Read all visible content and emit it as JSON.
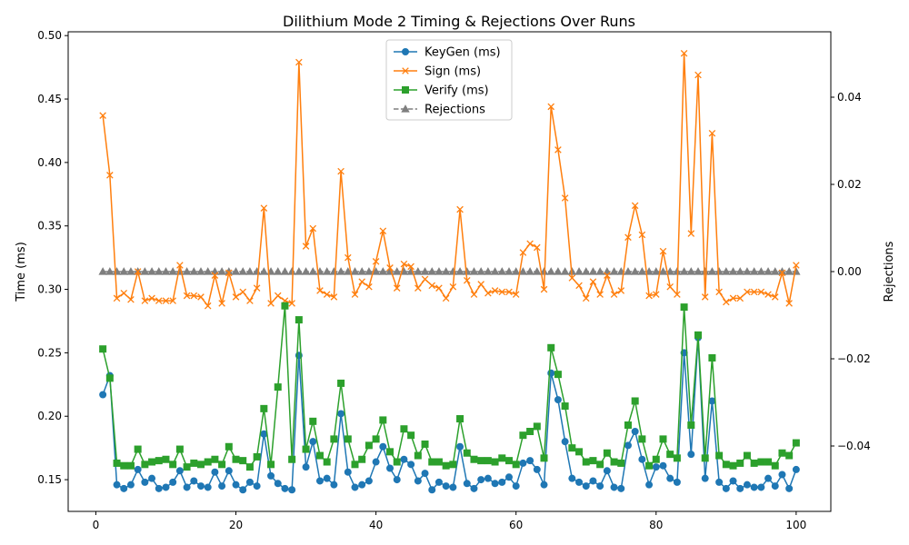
{
  "chart_data": {
    "type": "line",
    "title": "Dilithium Mode 2 Timing & Rejections Over Runs",
    "xlabel": "",
    "ylabel": "Time (ms)",
    "y2label": "Rejections",
    "xlim": [
      -3.95,
      104.95
    ],
    "ylim": [
      0.125,
      0.503
    ],
    "y2lim": [
      -0.055,
      0.055
    ],
    "x_ticks": [
      0,
      20,
      40,
      60,
      80,
      100
    ],
    "y_ticks": [
      0.15,
      0.2,
      0.25,
      0.3,
      0.35,
      0.4,
      0.45,
      0.5
    ],
    "y2_ticks": [
      -0.04,
      -0.02,
      0.0,
      0.02,
      0.04
    ],
    "legend_position": "top-center",
    "grid": false,
    "x": [
      1,
      2,
      3,
      4,
      5,
      6,
      7,
      8,
      9,
      10,
      11,
      12,
      13,
      14,
      15,
      16,
      17,
      18,
      19,
      20,
      21,
      22,
      23,
      24,
      25,
      26,
      27,
      28,
      29,
      30,
      31,
      32,
      33,
      34,
      35,
      36,
      37,
      38,
      39,
      40,
      41,
      42,
      43,
      44,
      45,
      46,
      47,
      48,
      49,
      50,
      51,
      52,
      53,
      54,
      55,
      56,
      57,
      58,
      59,
      60,
      61,
      62,
      63,
      64,
      65,
      66,
      67,
      68,
      69,
      70,
      71,
      72,
      73,
      74,
      75,
      76,
      77,
      78,
      79,
      80,
      81,
      82,
      83,
      84,
      85,
      86,
      87,
      88,
      89,
      90,
      91,
      92,
      93,
      94,
      95,
      96,
      97,
      98,
      99,
      100
    ],
    "series": [
      {
        "name": "KeyGen (ms)",
        "axis": "left",
        "color": "#1f77b4",
        "marker": "circle",
        "values": [
          0.217,
          0.232,
          0.146,
          0.143,
          0.146,
          0.158,
          0.148,
          0.151,
          0.143,
          0.144,
          0.148,
          0.157,
          0.144,
          0.149,
          0.145,
          0.144,
          0.156,
          0.145,
          0.157,
          0.146,
          0.142,
          0.148,
          0.145,
          0.186,
          0.153,
          0.147,
          0.143,
          0.142,
          0.248,
          0.16,
          0.18,
          0.149,
          0.151,
          0.146,
          0.202,
          0.156,
          0.144,
          0.146,
          0.149,
          0.164,
          0.176,
          0.159,
          0.15,
          0.166,
          0.162,
          0.149,
          0.155,
          0.142,
          0.148,
          0.145,
          0.144,
          0.176,
          0.147,
          0.143,
          0.15,
          0.151,
          0.147,
          0.148,
          0.152,
          0.145,
          0.163,
          0.165,
          0.158,
          0.146,
          0.234,
          0.213,
          0.18,
          0.151,
          0.148,
          0.145,
          0.149,
          0.145,
          0.157,
          0.144,
          0.143,
          0.177,
          0.188,
          0.166,
          0.146,
          0.16,
          0.161,
          0.151,
          0.148,
          0.25,
          0.17,
          0.262,
          0.151,
          0.212,
          0.148,
          0.143,
          0.149,
          0.143,
          0.146,
          0.144,
          0.144,
          0.151,
          0.145,
          0.154,
          0.143,
          0.158
        ]
      },
      {
        "name": "Sign (ms)",
        "axis": "left",
        "color": "#ff7f0e",
        "marker": "x",
        "values": [
          0.437,
          0.39,
          0.293,
          0.297,
          0.292,
          0.314,
          0.291,
          0.293,
          0.291,
          0.291,
          0.291,
          0.319,
          0.295,
          0.295,
          0.294,
          0.287,
          0.311,
          0.289,
          0.313,
          0.294,
          0.298,
          0.291,
          0.301,
          0.364,
          0.289,
          0.295,
          0.291,
          0.289,
          0.479,
          0.334,
          0.348,
          0.299,
          0.296,
          0.294,
          0.393,
          0.325,
          0.296,
          0.306,
          0.302,
          0.322,
          0.346,
          0.317,
          0.301,
          0.32,
          0.318,
          0.301,
          0.308,
          0.303,
          0.301,
          0.293,
          0.302,
          0.363,
          0.307,
          0.296,
          0.304,
          0.297,
          0.299,
          0.298,
          0.298,
          0.296,
          0.329,
          0.336,
          0.333,
          0.3,
          0.444,
          0.41,
          0.372,
          0.309,
          0.303,
          0.293,
          0.306,
          0.296,
          0.311,
          0.296,
          0.299,
          0.341,
          0.366,
          0.343,
          0.295,
          0.296,
          0.33,
          0.302,
          0.296,
          0.486,
          0.344,
          0.469,
          0.294,
          0.423,
          0.298,
          0.29,
          0.293,
          0.293,
          0.298,
          0.298,
          0.298,
          0.296,
          0.294,
          0.313,
          0.289,
          0.319
        ]
      },
      {
        "name": "Verify (ms)",
        "axis": "left",
        "color": "#2ca02c",
        "marker": "square",
        "values": [
          0.253,
          0.23,
          0.163,
          0.161,
          0.161,
          0.174,
          0.162,
          0.164,
          0.165,
          0.166,
          0.162,
          0.174,
          0.16,
          0.163,
          0.162,
          0.164,
          0.166,
          0.162,
          0.176,
          0.166,
          0.165,
          0.16,
          0.168,
          0.206,
          0.162,
          0.223,
          0.287,
          0.166,
          0.276,
          0.174,
          0.196,
          0.169,
          0.164,
          0.182,
          0.226,
          0.182,
          0.162,
          0.166,
          0.177,
          0.182,
          0.197,
          0.172,
          0.164,
          0.19,
          0.185,
          0.169,
          0.178,
          0.164,
          0.164,
          0.161,
          0.162,
          0.198,
          0.171,
          0.166,
          0.165,
          0.165,
          0.164,
          0.167,
          0.165,
          0.162,
          0.185,
          0.188,
          0.192,
          0.167,
          0.254,
          0.233,
          0.208,
          0.175,
          0.172,
          0.164,
          0.165,
          0.162,
          0.171,
          0.164,
          0.163,
          0.193,
          0.212,
          0.182,
          0.161,
          0.166,
          0.182,
          0.17,
          0.167,
          0.286,
          0.193,
          0.264,
          0.167,
          0.246,
          0.169,
          0.162,
          0.161,
          0.163,
          0.169,
          0.163,
          0.164,
          0.164,
          0.161,
          0.171,
          0.169,
          0.179
        ]
      },
      {
        "name": "Rejections",
        "axis": "right",
        "color": "#7f7f7f",
        "marker": "triangle",
        "dashed": true,
        "values": [
          0,
          0,
          0,
          0,
          0,
          0,
          0,
          0,
          0,
          0,
          0,
          0,
          0,
          0,
          0,
          0,
          0,
          0,
          0,
          0,
          0,
          0,
          0,
          0,
          0,
          0,
          0,
          0,
          0,
          0,
          0,
          0,
          0,
          0,
          0,
          0,
          0,
          0,
          0,
          0,
          0,
          0,
          0,
          0,
          0,
          0,
          0,
          0,
          0,
          0,
          0,
          0,
          0,
          0,
          0,
          0,
          0,
          0,
          0,
          0,
          0,
          0,
          0,
          0,
          0,
          0,
          0,
          0,
          0,
          0,
          0,
          0,
          0,
          0,
          0,
          0,
          0,
          0,
          0,
          0,
          0,
          0,
          0,
          0,
          0,
          0,
          0,
          0,
          0,
          0,
          0,
          0,
          0,
          0,
          0,
          0,
          0,
          0,
          0,
          0
        ]
      }
    ]
  }
}
